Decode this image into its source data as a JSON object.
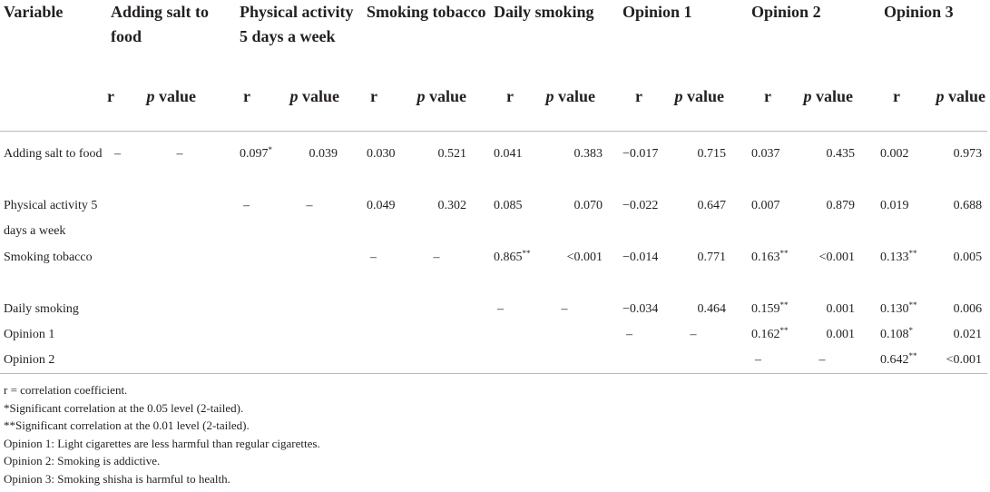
{
  "table": {
    "header": {
      "variable": "Variable",
      "groups": [
        "Adding salt to food",
        "Physical activity 5 days a week",
        "Smoking tobacco",
        "Daily smoking",
        "Opinion 1",
        "Opinion 2",
        "Opinion 3"
      ],
      "r_label": "r",
      "p_label_italic": "p",
      "p_label_rest": " value"
    },
    "rows": [
      {
        "label": "Adding salt to food",
        "cells": [
          [
            "–",
            "–"
          ],
          [
            "0.097",
            "*",
            "0.039"
          ],
          [
            "0.030",
            "",
            "0.521"
          ],
          [
            "0.041",
            "",
            "0.383"
          ],
          [
            "−0.017",
            "",
            "0.715"
          ],
          [
            "0.037",
            "",
            "0.435"
          ],
          [
            "0.002",
            "",
            "0.973"
          ]
        ]
      },
      {
        "label": "Physical activity 5 days a week",
        "cells": [
          [
            "",
            ""
          ],
          [
            "–",
            "",
            "–"
          ],
          [
            "0.049",
            "",
            "0.302"
          ],
          [
            "0.085",
            "",
            "0.070"
          ],
          [
            "−0.022",
            "",
            "0.647"
          ],
          [
            "0.007",
            "",
            "0.879"
          ],
          [
            "0.019",
            "",
            "0.688"
          ]
        ]
      },
      {
        "label": "Smoking tobacco",
        "cells": [
          [
            "",
            ""
          ],
          [
            "",
            "",
            ""
          ],
          [
            "–",
            "",
            "–"
          ],
          [
            "0.865",
            "**",
            "<0.001"
          ],
          [
            "−0.014",
            "",
            "0.771"
          ],
          [
            "0.163",
            "**",
            "<0.001"
          ],
          [
            "0.133",
            "**",
            "0.005"
          ]
        ]
      },
      {
        "label": "Daily smoking",
        "cells": [
          [
            "",
            ""
          ],
          [
            "",
            "",
            ""
          ],
          [
            "",
            "",
            ""
          ],
          [
            "–",
            "",
            "–"
          ],
          [
            "−0.034",
            "",
            "0.464"
          ],
          [
            "0.159",
            "**",
            "0.001"
          ],
          [
            "0.130",
            "**",
            "0.006"
          ]
        ]
      },
      {
        "label": "Opinion 1",
        "cells": [
          [
            "",
            ""
          ],
          [
            "",
            "",
            ""
          ],
          [
            "",
            "",
            ""
          ],
          [
            "",
            "",
            ""
          ],
          [
            "–",
            "",
            "–"
          ],
          [
            "0.162",
            "**",
            "0.001"
          ],
          [
            "0.108",
            "*",
            "0.021"
          ]
        ]
      },
      {
        "label": "Opinion 2",
        "cells": [
          [
            "",
            ""
          ],
          [
            "",
            "",
            ""
          ],
          [
            "",
            "",
            ""
          ],
          [
            "",
            "",
            ""
          ],
          [
            "",
            "",
            ""
          ],
          [
            "–",
            "",
            "–"
          ],
          [
            "0.642",
            "**",
            "<0.001"
          ]
        ]
      }
    ]
  },
  "notes": [
    "r = correlation coefficient.",
    "*Significant correlation at the 0.05 level (2-tailed).",
    "**Significant correlation at the 0.01 level (2-tailed).",
    "Opinion 1: Light cigarettes are less harmful than regular cigarettes.",
    "Opinion 2: Smoking is addictive.",
    "Opinion 3: Smoking shisha is harmful to health."
  ]
}
